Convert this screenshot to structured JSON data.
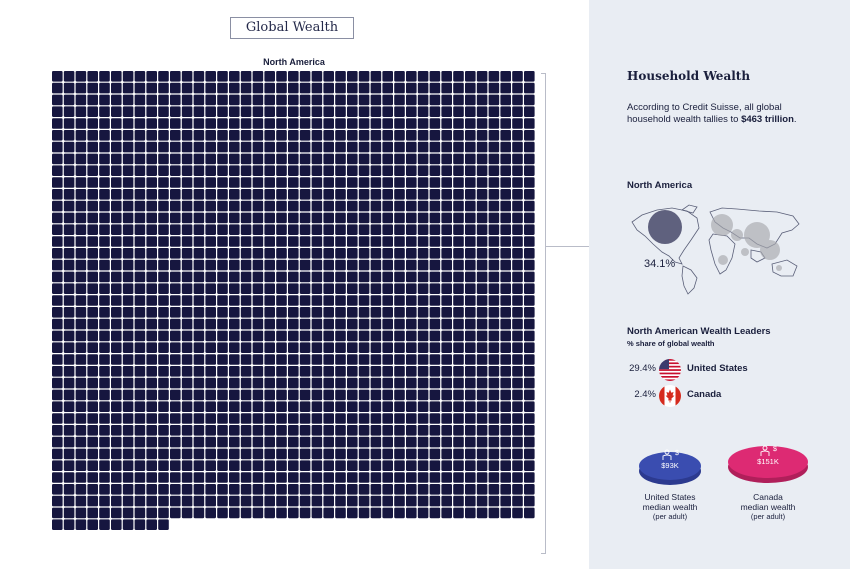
{
  "header": {
    "title": "Global Wealth"
  },
  "chart_data": {
    "type": "waffle",
    "title": "Global Wealth",
    "region": "North America",
    "columns": 41,
    "rows": 41,
    "filled_cells": 1568,
    "cell_color": "#16163f",
    "share_percent": 34.1
  },
  "panel": {
    "title": "Household Wealth",
    "intro_pre": "According to Credit Suisse, all global household wealth tallies to ",
    "intro_bold": "$463 trillion",
    "intro_post": ".",
    "map_heading": "North America",
    "map_share": "34.1%",
    "leaders_heading": "North American Wealth Leaders",
    "leaders_sub": "% share of global wealth",
    "leaders": [
      {
        "pct": "29.4%",
        "country": "United States",
        "flag": "us-flag-icon"
      },
      {
        "pct": "2.4%",
        "country": "Canada",
        "flag": "canada-flag-icon"
      }
    ],
    "medians": [
      {
        "value": "$93K",
        "line1": "United States",
        "line2": "median wealth",
        "line3": "(per adult)",
        "color": "#3a4db0"
      },
      {
        "value": "$151K",
        "line1": "Canada",
        "line2": "median wealth",
        "line3": "(per adult)",
        "color": "#dd2a73"
      }
    ]
  },
  "colors": {
    "navy": "#16163f",
    "panel_bg": "#e9edf3",
    "us_blue": "#3a4db0",
    "canada_pink": "#dd2a73"
  }
}
